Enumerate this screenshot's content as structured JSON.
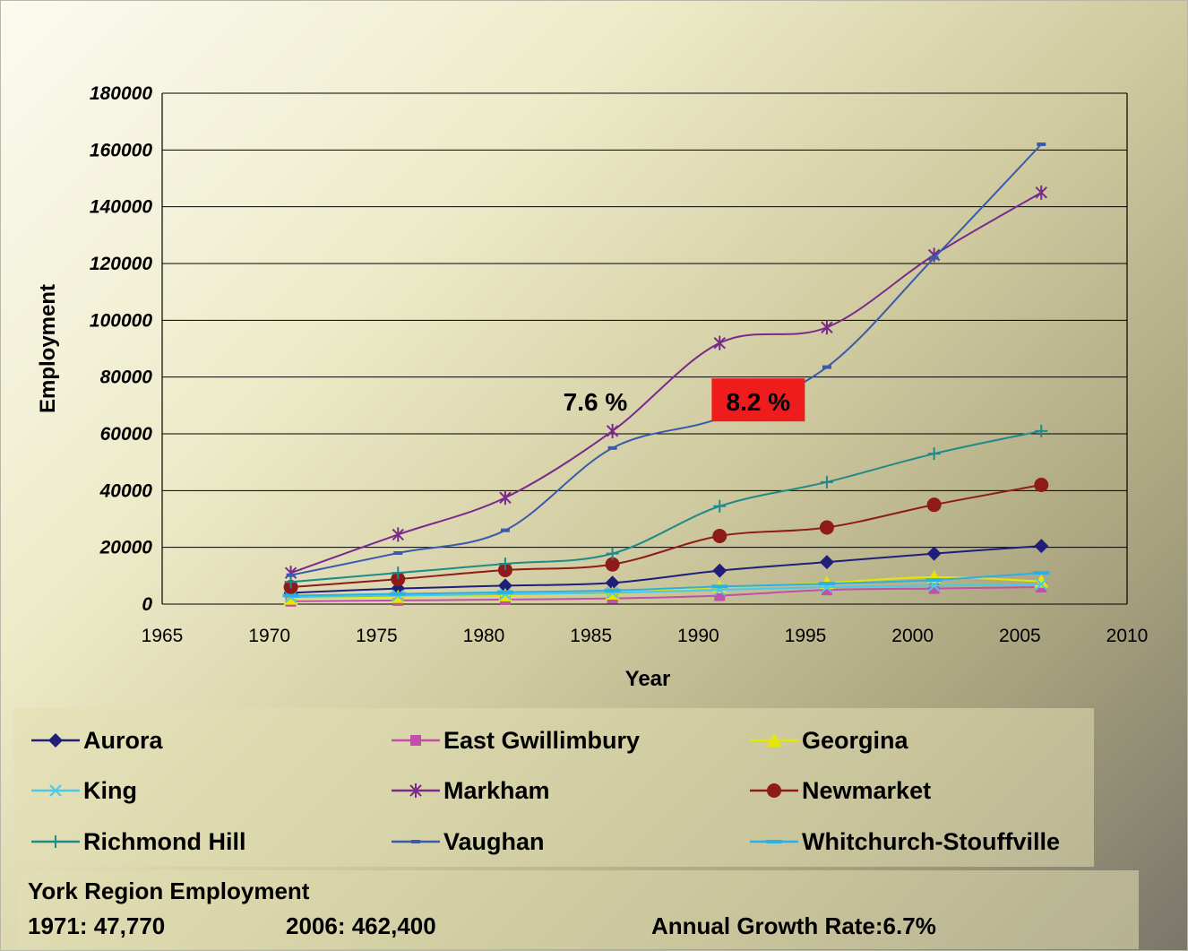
{
  "chart_data": {
    "type": "line",
    "ylabel": "Employment",
    "xlabel": "Year",
    "xlim": [
      1965,
      2010
    ],
    "ylim": [
      0,
      180000
    ],
    "x_ticks": [
      1965,
      1970,
      1975,
      1980,
      1985,
      1990,
      1995,
      2000,
      2005,
      2010
    ],
    "y_ticks": [
      0,
      20000,
      40000,
      60000,
      80000,
      100000,
      120000,
      140000,
      160000,
      180000
    ],
    "grid": "horizontal",
    "x": [
      1971,
      1976,
      1981,
      1986,
      1991,
      1996,
      2001,
      2006
    ],
    "series": [
      {
        "name": "Aurora",
        "color": "#1f1f7a",
        "marker": "diamond",
        "values": [
          4000,
          5500,
          6500,
          7500,
          11800,
          14800,
          17800,
          20500
        ]
      },
      {
        "name": "East Gwillimbury",
        "color": "#c24fa8",
        "marker": "square",
        "values": [
          1000,
          1300,
          1600,
          2000,
          3000,
          5000,
          5500,
          6000
        ]
      },
      {
        "name": "Georgina",
        "color": "#e6e600",
        "marker": "triangle",
        "values": [
          2000,
          2600,
          3200,
          3800,
          6000,
          7500,
          9500,
          8000
        ]
      },
      {
        "name": "King",
        "color": "#4cc8e8",
        "marker": "x",
        "values": [
          2500,
          3000,
          3500,
          4000,
          5000,
          6000,
          6500,
          7000
        ]
      },
      {
        "name": "Markham",
        "color": "#7a2a8a",
        "marker": "star",
        "values": [
          11000,
          24500,
          37500,
          61000,
          92000,
          97500,
          123000,
          145000
        ]
      },
      {
        "name": "Newmarket",
        "color": "#8e1a1a",
        "marker": "circle",
        "values": [
          6000,
          8800,
          12000,
          14000,
          24000,
          27000,
          35000,
          42000
        ]
      },
      {
        "name": "Richmond Hill",
        "color": "#1f8a8a",
        "marker": "plus",
        "values": [
          7800,
          11000,
          14200,
          17800,
          34500,
          43000,
          53000,
          61000
        ]
      },
      {
        "name": "Vaughan",
        "color": "#3a5aaa",
        "marker": "dash",
        "values": [
          10200,
          18000,
          26000,
          55000,
          65500,
          83500,
          122000,
          162000
        ]
      },
      {
        "name": "Whitchurch-Stouffville",
        "color": "#2ab0e6",
        "marker": "bar",
        "values": [
          3000,
          3600,
          4200,
          4800,
          6200,
          7200,
          8500,
          11000
        ]
      }
    ],
    "annotations": [
      {
        "text": "7.6 %",
        "x": 1985.2,
        "y": 71000,
        "highlight": false
      },
      {
        "text": "8.2 %",
        "x": 1992.8,
        "y": 71000,
        "highlight": true,
        "highlight_color": "#ee1c1c"
      }
    ]
  },
  "summary": {
    "title": "York Region Employment",
    "start": "1971: 47,770",
    "end": "2006: 462,400",
    "growth": "Annual Growth Rate:6.7%"
  }
}
